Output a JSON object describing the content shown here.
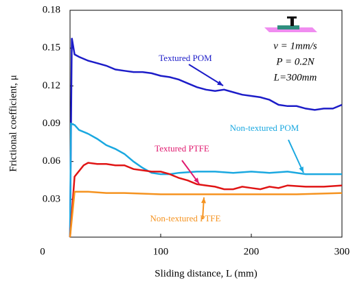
{
  "chart_data": {
    "type": "line",
    "xlabel": "Sliding distance, L (mm)",
    "ylabel": "Frictional coefficient, μ",
    "xlim": [
      0,
      300
    ],
    "xticks": [
      0,
      100,
      200,
      300
    ],
    "ylim": [
      0,
      0.18
    ],
    "yticks": [
      0.03,
      0.06,
      0.09,
      0.12,
      0.15,
      0.18
    ],
    "series": [
      {
        "name": "Textured POM",
        "color": "#1c1cc8",
        "x": [
          0,
          2,
          5,
          10,
          20,
          30,
          40,
          50,
          60,
          70,
          80,
          90,
          100,
          110,
          120,
          130,
          140,
          150,
          160,
          170,
          180,
          190,
          200,
          210,
          220,
          230,
          240,
          250,
          260,
          270,
          280,
          290,
          300
        ],
        "values": [
          0,
          0.158,
          0.145,
          0.143,
          0.14,
          0.138,
          0.136,
          0.133,
          0.132,
          0.131,
          0.131,
          0.13,
          0.128,
          0.127,
          0.125,
          0.122,
          0.119,
          0.117,
          0.116,
          0.117,
          0.115,
          0.113,
          0.112,
          0.111,
          0.109,
          0.105,
          0.104,
          0.104,
          0.102,
          0.101,
          0.102,
          0.102,
          0.105
        ]
      },
      {
        "name": "Non-textured POM",
        "color": "#1aa8e0",
        "x": [
          0,
          1,
          5,
          10,
          20,
          30,
          40,
          50,
          60,
          70,
          80,
          90,
          100,
          110,
          120,
          140,
          160,
          180,
          200,
          220,
          240,
          260,
          280,
          300
        ],
        "values": [
          0,
          0.09,
          0.089,
          0.085,
          0.082,
          0.078,
          0.073,
          0.07,
          0.066,
          0.06,
          0.055,
          0.051,
          0.05,
          0.05,
          0.051,
          0.052,
          0.052,
          0.051,
          0.052,
          0.051,
          0.052,
          0.05,
          0.05,
          0.05
        ]
      },
      {
        "name": "Textured PTFE",
        "color": "#e01414",
        "x": [
          0,
          5,
          15,
          20,
          30,
          40,
          50,
          60,
          70,
          80,
          90,
          100,
          110,
          120,
          130,
          140,
          150,
          160,
          170,
          180,
          190,
          200,
          210,
          220,
          230,
          240,
          260,
          280,
          300
        ],
        "values": [
          0,
          0.048,
          0.057,
          0.059,
          0.058,
          0.058,
          0.057,
          0.057,
          0.054,
          0.053,
          0.052,
          0.052,
          0.05,
          0.047,
          0.045,
          0.042,
          0.041,
          0.04,
          0.038,
          0.038,
          0.04,
          0.039,
          0.038,
          0.04,
          0.039,
          0.041,
          0.04,
          0.04,
          0.041
        ]
      },
      {
        "name": "Non-textured PTFE",
        "color": "#f5921e",
        "x": [
          0,
          5,
          20,
          40,
          60,
          100,
          150,
          200,
          250,
          300
        ],
        "values": [
          0,
          0.036,
          0.036,
          0.035,
          0.035,
          0.034,
          0.034,
          0.034,
          0.034,
          0.035
        ]
      }
    ],
    "annotations": [
      "v = 1mm/s",
      "P = 0.2N",
      "L=300mm"
    ]
  }
}
